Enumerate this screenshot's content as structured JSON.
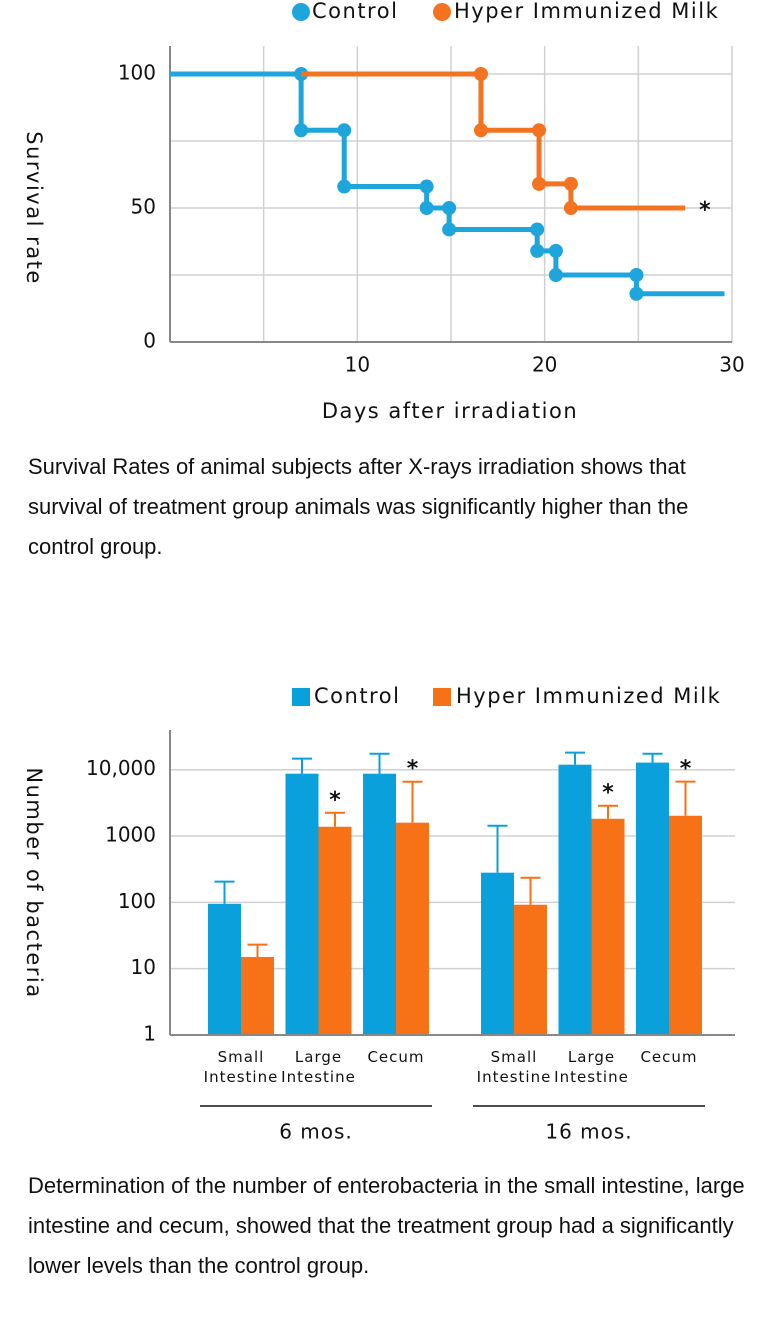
{
  "chart_data": [
    {
      "type": "line",
      "step": true,
      "x_label": "Days after irradiation",
      "y_label": "Survival rate",
      "xlim": [
        0,
        30
      ],
      "xticks": [
        10,
        20,
        30
      ],
      "xgrid": [
        5,
        10,
        15,
        20,
        25,
        30
      ],
      "ylim": [
        0,
        100
      ],
      "yticks": [
        0,
        50,
        100
      ],
      "ygrid": [
        25,
        50,
        75,
        100
      ],
      "series": [
        {
          "name": "Control",
          "color": "#1ea5dc",
          "x": [
            0,
            7,
            9.3,
            13.7,
            14.9,
            19.6,
            20.6,
            24.9,
            29.6
          ],
          "values": [
            100,
            79,
            58,
            50,
            42,
            34,
            25,
            18,
            18
          ]
        },
        {
          "name": "Hyper Immunized Milk",
          "color": "#f47320",
          "x": [
            7,
            16.6,
            19.7,
            21.4,
            27.5
          ],
          "values": [
            100,
            79,
            59,
            50,
            50
          ],
          "end_marker": "*"
        }
      ],
      "caption": "Survival Rates of animal subjects after X-rays irradiation shows that survival of treatment group animals was significantly higher than the control group."
    },
    {
      "type": "bar",
      "log_scale": true,
      "grid": true,
      "y_label": "Number of bacteria",
      "ylim": [
        1,
        37000
      ],
      "yticks": [
        1,
        10,
        100,
        1000,
        {
          "value": 10000,
          "label": "10,000"
        }
      ],
      "categories": [
        "Small Intestine",
        "Large Intestine",
        "Cecum",
        "Small Intestine",
        "Large Intestine",
        "Cecum"
      ],
      "groups": [
        "6 mos.",
        "16 mos."
      ],
      "series": [
        {
          "name": "Control",
          "color": "#0aa0dc",
          "values": [
            95,
            8700,
            8700,
            280,
            11900,
            12800
          ],
          "errors": [
            110,
            6000,
            8700,
            1150,
            6200,
            4600
          ]
        },
        {
          "name": "Hyper Immunized Milk",
          "color": "#f77117",
          "values": [
            15,
            1380,
            1590,
            92,
            1820,
            2020
          ],
          "errors": [
            8,
            860,
            5000,
            143,
            1040,
            4600
          ],
          "markers": [
            null,
            "*",
            "*",
            null,
            "*",
            "*"
          ]
        }
      ],
      "caption": "Determination of the number of enterobacteria in the small intestine, large intestine and cecum, showed that the treatment group had a significantly lower levels than the control group."
    }
  ]
}
